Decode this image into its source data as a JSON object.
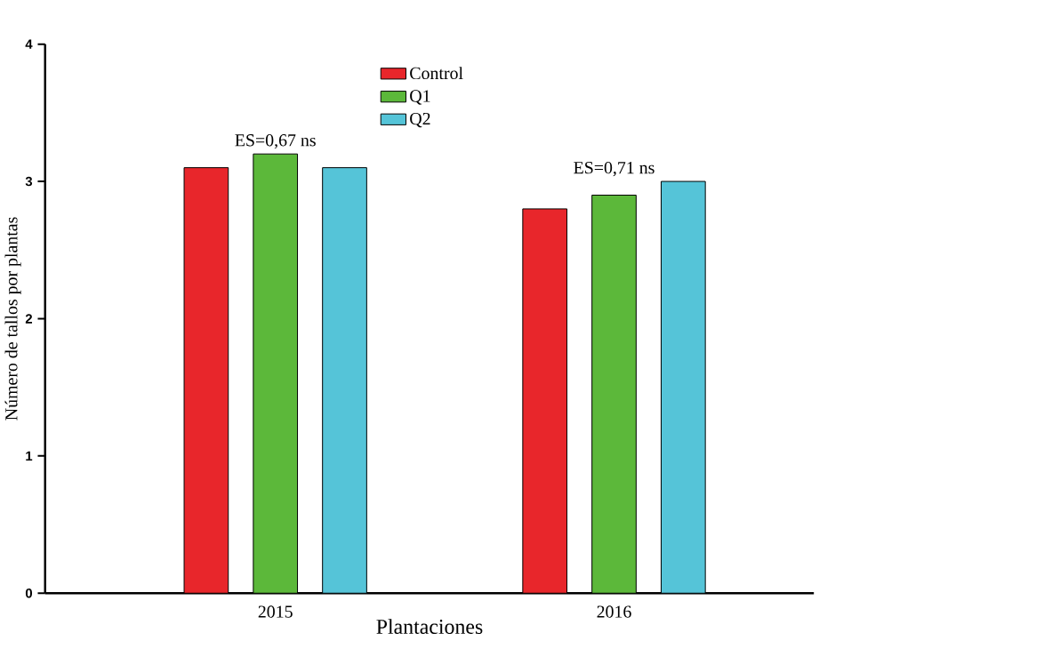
{
  "chart_data": {
    "type": "bar",
    "xlabel": "Plantaciones",
    "ylabel": "Número de tallos por plantas",
    "categories": [
      "2015",
      "2016"
    ],
    "series": [
      {
        "name": "Control",
        "color": "#e8262b",
        "values": [
          3.1,
          2.8
        ]
      },
      {
        "name": "Q1",
        "color": "#5cb83a",
        "values": [
          3.2,
          2.9
        ]
      },
      {
        "name": "Q2",
        "color": "#55c4d8",
        "values": [
          3.1,
          3.0
        ]
      }
    ],
    "ylim": [
      0,
      4
    ],
    "yticks": [
      0,
      1,
      2,
      3,
      4
    ],
    "legend": "top",
    "annotations": [
      "ES=0,67 ns",
      "ES=0,71 ns"
    ]
  }
}
